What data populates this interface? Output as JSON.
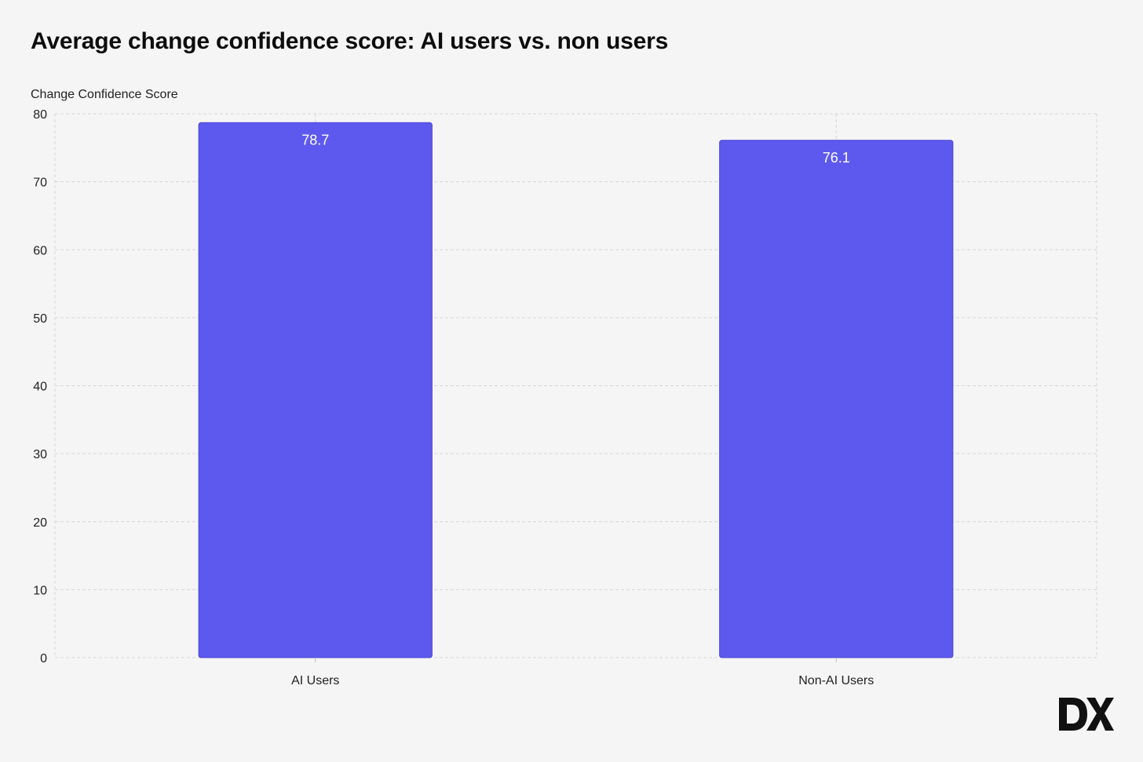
{
  "chart_data": {
    "type": "bar",
    "title": "Average change confidence score: AI users vs. non users",
    "xlabel": "",
    "ylabel": "Change Confidence Score",
    "categories": [
      "AI Users",
      "Non-AI Users"
    ],
    "values": [
      78.7,
      76.1
    ],
    "data_labels": [
      "78.7",
      "76.1"
    ],
    "ylim": [
      0,
      80
    ],
    "yticks": [
      0,
      10,
      20,
      30,
      40,
      50,
      60,
      70,
      80
    ],
    "grid": true,
    "legend": "none",
    "colors": {
      "bar": "#5e59ee",
      "bar_border": "#4a44d6",
      "grid": "#d6d6d6",
      "background": "#f5f5f5"
    }
  },
  "brand": {
    "logo_icon": "dx-logo-icon"
  }
}
